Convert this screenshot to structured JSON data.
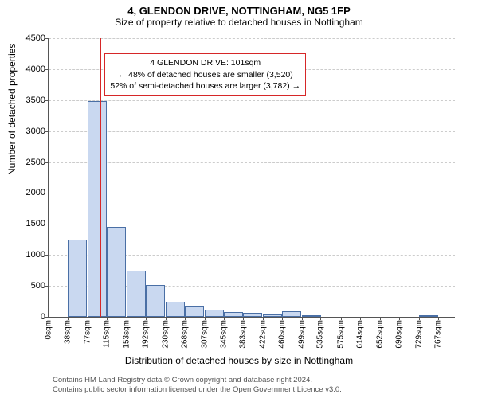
{
  "title": "4, GLENDON DRIVE, NOTTINGHAM, NG5 1FP",
  "subtitle": "Size of property relative to detached houses in Nottingham",
  "ylabel": "Number of detached properties",
  "xlabel": "Distribution of detached houses by size in Nottingham",
  "chart": {
    "type": "histogram",
    "background_color": "#ffffff",
    "grid_color": "#cccccc",
    "axis_color": "#555555",
    "bar_fill": "#c9d8f0",
    "bar_stroke": "#4a6fa5",
    "bar_stroke_width": 1,
    "highlight_color": "#d62728",
    "ylim": [
      0,
      4500
    ],
    "yticks": [
      0,
      500,
      1000,
      1500,
      2000,
      2500,
      3000,
      3500,
      4000,
      4500
    ],
    "xlim": [
      0,
      800
    ],
    "xticks": [
      0,
      38,
      77,
      115,
      153,
      192,
      230,
      268,
      307,
      345,
      383,
      422,
      460,
      499,
      535,
      575,
      614,
      652,
      690,
      729,
      767
    ],
    "xtick_suffix": "sqm",
    "bin_width": 38.4,
    "bars": [
      {
        "x0": 0,
        "count": 0
      },
      {
        "x0": 38,
        "count": 1250
      },
      {
        "x0": 77,
        "count": 3480
      },
      {
        "x0": 115,
        "count": 1450
      },
      {
        "x0": 153,
        "count": 750
      },
      {
        "x0": 192,
        "count": 520
      },
      {
        "x0": 230,
        "count": 250
      },
      {
        "x0": 268,
        "count": 170
      },
      {
        "x0": 307,
        "count": 120
      },
      {
        "x0": 345,
        "count": 80
      },
      {
        "x0": 383,
        "count": 60
      },
      {
        "x0": 422,
        "count": 40
      },
      {
        "x0": 460,
        "count": 90
      },
      {
        "x0": 499,
        "count": 20
      },
      {
        "x0": 535,
        "count": 0
      },
      {
        "x0": 575,
        "count": 0
      },
      {
        "x0": 614,
        "count": 0
      },
      {
        "x0": 652,
        "count": 0
      },
      {
        "x0": 690,
        "count": 0
      },
      {
        "x0": 729,
        "count": 20
      },
      {
        "x0": 767,
        "count": 0
      }
    ],
    "highlight_x": 101
  },
  "annotation": {
    "line1": "4 GLENDON DRIVE: 101sqm",
    "line2": "← 48% of detached houses are smaller (3,520)",
    "line3": "52% of semi-detached houses are larger (3,782) →",
    "border_color": "#d62728",
    "font_size": 10.5
  },
  "footer": {
    "line1": "Contains HM Land Registry data © Crown copyright and database right 2024.",
    "line2": "Contains public sector information licensed under the Open Government Licence v3.0."
  },
  "title_fontsize": 13,
  "subtitle_fontsize": 12,
  "label_fontsize": 12,
  "tick_fontsize": 11
}
